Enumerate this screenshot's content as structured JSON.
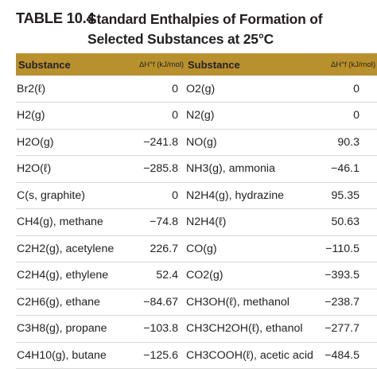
{
  "caption": {
    "label": "TABLE 10.4",
    "title": "Standard Enthalpies of Formation of Selected Substances at 25°C"
  },
  "table": {
    "headers": [
      "Substance",
      "ΔH°f (kJ/mol)",
      "Substance",
      "ΔH°f (kJ/mol)"
    ],
    "rows": [
      [
        "Br2(ℓ)",
        "0",
        "O2(g)",
        "0"
      ],
      [
        "H2(g)",
        "0",
        "N2(g)",
        "0"
      ],
      [
        "H2O(g)",
        "−241.8",
        "NO(g)",
        "90.3"
      ],
      [
        "H2O(ℓ)",
        "−285.8",
        "NH3(g), ammonia",
        "−46.1"
      ],
      [
        "C(s, graphite)",
        "0",
        "N2H4(g), hydrazine",
        "95.35"
      ],
      [
        "CH4(g), methane",
        "−74.8",
        "N2H4(ℓ)",
        "50.63"
      ],
      [
        "C2H2(g), acetylene",
        "226.7",
        "CO(g)",
        "−110.5"
      ],
      [
        "C2H4(g), ethylene",
        "52.4",
        "CO2(g)",
        "−393.5"
      ],
      [
        "C2H6(g), ethane",
        "−84.67",
        "CH3OH(ℓ), methanol",
        "−238.7"
      ],
      [
        "C3H8(g), propane",
        "−103.8",
        "CH3CH2OH(ℓ), ethanol",
        "−277.7"
      ],
      [
        "C4H10(g), butane",
        "−125.6",
        "CH3COOH(ℓ), acetic acid",
        "−484.5"
      ]
    ]
  }
}
